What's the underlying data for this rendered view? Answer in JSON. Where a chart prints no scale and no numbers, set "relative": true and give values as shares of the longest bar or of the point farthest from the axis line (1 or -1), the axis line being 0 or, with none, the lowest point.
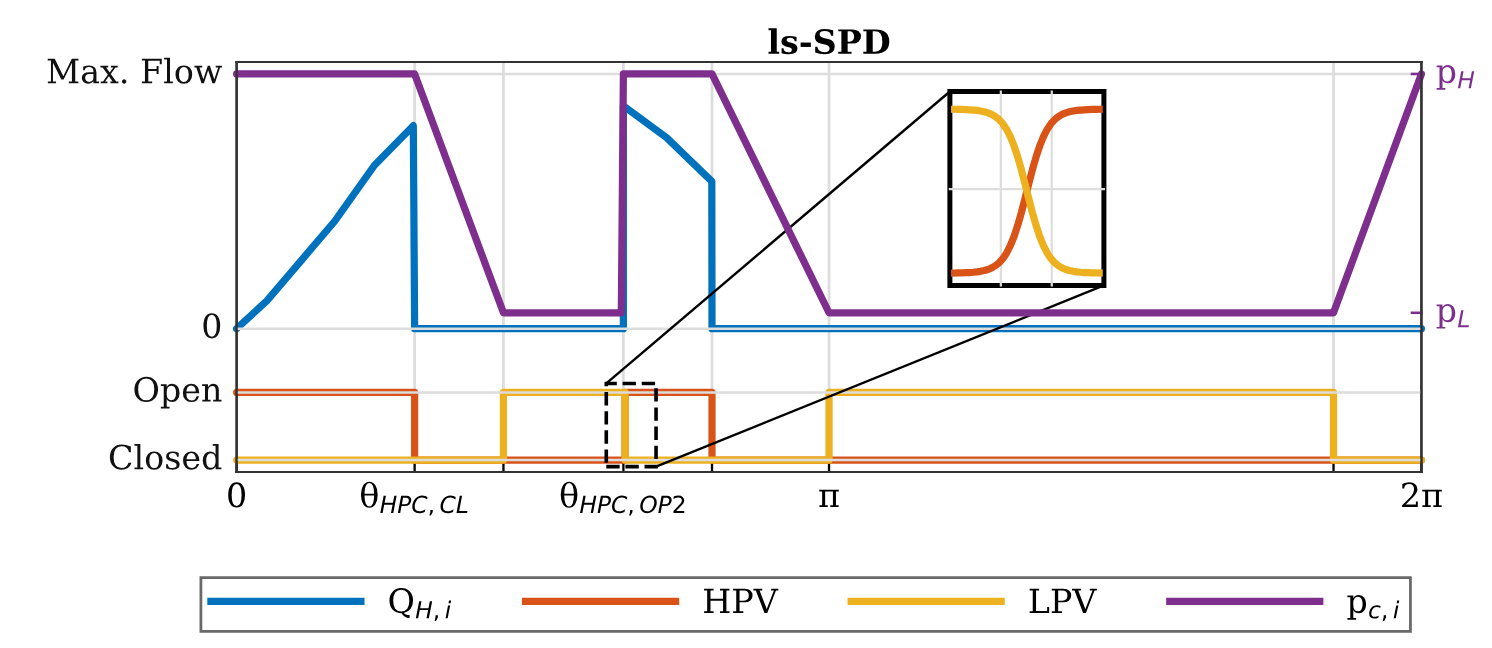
{
  "chart_data": {
    "type": "line",
    "title": "ls-SPD",
    "relative": true,
    "xlim": [
      0,
      6.2832
    ],
    "xticks": [
      0,
      {
        "value": 0.944,
        "label": "θ$_{HPC,CL}$"
      },
      {
        "value": 1.415,
        "label": null
      },
      {
        "value": 2.051,
        "label": "θ$_{HPC,OP2}$"
      },
      {
        "value": 2.521,
        "label": null
      },
      {
        "value": 3.1416,
        "label": "π"
      },
      {
        "value": 5.817,
        "label": null
      },
      {
        "value": 6.2832,
        "label": "2π"
      }
    ],
    "ref_lines": [
      {
        "axis": "y",
        "value": 0.03,
        "label": "Closed",
        "color": "#dddddd"
      },
      {
        "axis": "y",
        "value": 0.2,
        "label": "Open",
        "color": "#dddddd"
      },
      {
        "axis": "y",
        "value": 0.36,
        "label": "0",
        "color": "#dddddd"
      },
      {
        "axis": "y",
        "value": 1,
        "label": "Max. Flow",
        "color": "#dddddd"
      },
      {
        "axis": "y2",
        "value": 0.4,
        "label": "p$_{L}$",
        "color": "#7e2f8e"
      },
      {
        "axis": "y2",
        "value": 1,
        "label": "p$_{H}$",
        "color": "#7e2f8e"
      }
    ],
    "grid": "x",
    "legend": "bottom",
    "series": [
      {
        "name": "Q$_{H,i}$",
        "color": "#0072bd",
        "x": [
          0,
          0.16,
          0.34,
          0.52,
          0.73,
          0.937,
          0.944,
          2.051,
          2.051,
          2.28,
          2.52,
          2.521,
          6.2832
        ],
        "values": [
          0.36,
          0.43,
          0.53,
          0.63,
          0.77,
          0.87,
          0.36,
          0.36,
          0.92,
          0.84,
          0.73,
          0.36,
          0.36
        ]
      },
      {
        "name": "HPV",
        "color": "#d95319",
        "x": [
          0,
          0.944,
          0.944,
          2.06,
          2.06,
          2.521,
          2.521,
          6.2832
        ],
        "values": [
          0.2,
          0.2,
          0.03,
          0.03,
          0.2,
          0.2,
          0.03,
          0.03
        ]
      },
      {
        "name": "LPV",
        "color": "#edb120",
        "x": [
          0,
          1.415,
          1.415,
          2.06,
          2.06,
          3.1416,
          3.1416,
          5.817,
          5.817,
          6.2832
        ],
        "values": [
          0.03,
          0.03,
          0.2,
          0.2,
          0.03,
          0.03,
          0.2,
          0.2,
          0.03,
          0.03
        ]
      },
      {
        "name": "p$_{c,i}$",
        "color": "#7e2f8e",
        "axis": "y2",
        "x": [
          0,
          0.944,
          1.415,
          2.04,
          2.051,
          2.521,
          3.1416,
          5.817,
          6.2832
        ],
        "values": [
          1,
          1,
          0.4,
          0.4,
          1,
          1,
          0.4,
          0.4,
          1
        ]
      }
    ]
  }
}
